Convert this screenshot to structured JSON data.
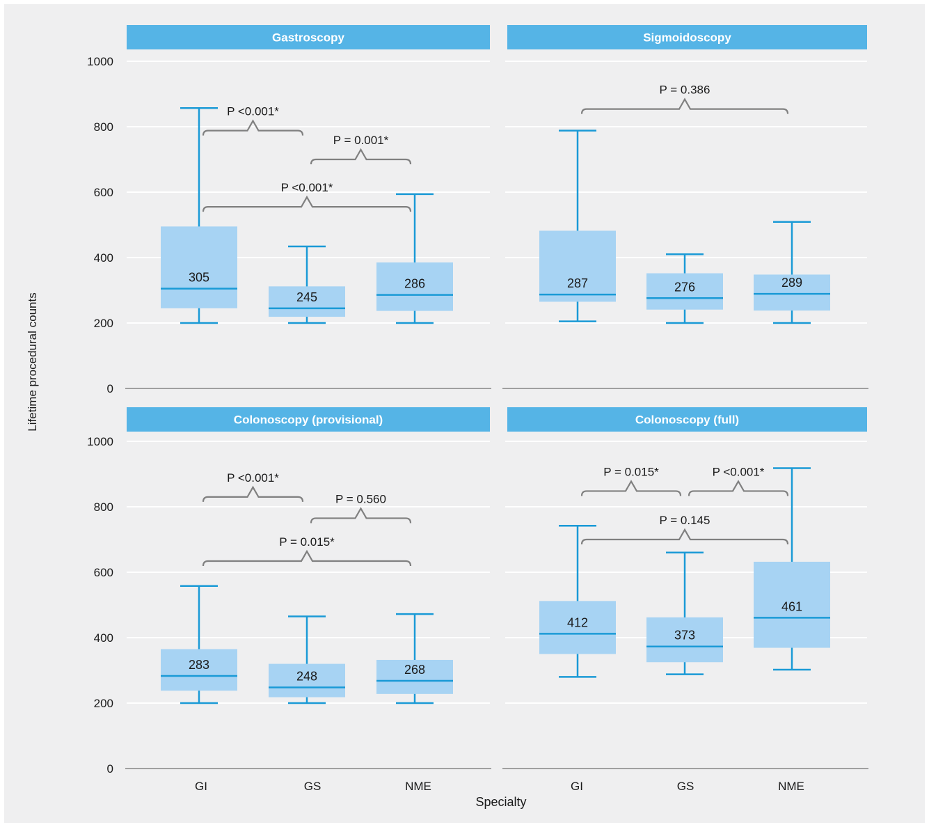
{
  "chart_data": {
    "type": "box",
    "x_axis_label": "Specialty",
    "y_axis_label": "Lifetime procedural counts",
    "y_ticks": [
      0,
      200,
      400,
      600,
      800,
      1000
    ],
    "ylim": [
      0,
      1000
    ],
    "categories": [
      "GI",
      "GS",
      "NME"
    ],
    "colors": {
      "strip": "#55b4e6",
      "box_fill": "#a7d3f3",
      "median": "#1a9ad6",
      "bracket": "#808080"
    },
    "panels": [
      {
        "title": "Gastroscopy",
        "boxes": [
          {
            "category": "GI",
            "whisker_low": 200,
            "q1": 245,
            "median": 305,
            "q3": 495,
            "whisker_high": 857,
            "label": "305"
          },
          {
            "category": "GS",
            "whisker_low": 200,
            "q1": 219,
            "median": 245,
            "q3": 312,
            "whisker_high": 434,
            "label": "245"
          },
          {
            "category": "NME",
            "whisker_low": 200,
            "q1": 237,
            "median": 286,
            "q3": 385,
            "whisker_high": 594,
            "label": "286"
          }
        ],
        "comparisons": [
          {
            "from": "GI",
            "to": "GS",
            "y": 788,
            "text": "P <0.001*"
          },
          {
            "from": "GS",
            "to": "NME",
            "y": 700,
            "text": "P = 0.001*"
          },
          {
            "from": "GI",
            "to": "NME",
            "y": 555,
            "text": "P <0.001*"
          }
        ]
      },
      {
        "title": "Sigmoidoscopy",
        "boxes": [
          {
            "category": "GI",
            "whisker_low": 205,
            "q1": 265,
            "median": 287,
            "q3": 482,
            "whisker_high": 788,
            "label": "287"
          },
          {
            "category": "GS",
            "whisker_low": 200,
            "q1": 241,
            "median": 276,
            "q3": 352,
            "whisker_high": 410,
            "label": "276"
          },
          {
            "category": "NME",
            "whisker_low": 200,
            "q1": 238,
            "median": 289,
            "q3": 348,
            "whisker_high": 509,
            "label": "289"
          }
        ],
        "comparisons": [
          {
            "from": "GI",
            "to": "NME",
            "y": 854,
            "text": "P = 0.386"
          }
        ]
      },
      {
        "title": "Colonoscopy (provisional)",
        "boxes": [
          {
            "category": "GI",
            "whisker_low": 200,
            "q1": 238,
            "median": 283,
            "q3": 365,
            "whisker_high": 558,
            "label": "283"
          },
          {
            "category": "GS",
            "whisker_low": 200,
            "q1": 218,
            "median": 248,
            "q3": 320,
            "whisker_high": 465,
            "label": "248"
          },
          {
            "category": "NME",
            "whisker_low": 200,
            "q1": 228,
            "median": 268,
            "q3": 332,
            "whisker_high": 472,
            "label": "268"
          }
        ],
        "comparisons": [
          {
            "from": "GI",
            "to": "GS",
            "y": 830,
            "text": "P <0.001*"
          },
          {
            "from": "GS",
            "to": "NME",
            "y": 765,
            "text": "P = 0.560"
          },
          {
            "from": "GI",
            "to": "NME",
            "y": 634,
            "text": "P = 0.015*"
          }
        ]
      },
      {
        "title": "Colonoscopy (full)",
        "boxes": [
          {
            "category": "GI",
            "whisker_low": 280,
            "q1": 350,
            "median": 412,
            "q3": 512,
            "whisker_high": 742,
            "label": "412"
          },
          {
            "category": "GS",
            "whisker_low": 288,
            "q1": 325,
            "median": 373,
            "q3": 462,
            "whisker_high": 660,
            "label": "373"
          },
          {
            "category": "NME",
            "whisker_low": 302,
            "q1": 369,
            "median": 461,
            "q3": 632,
            "whisker_high": 918,
            "label": "461"
          }
        ],
        "comparisons": [
          {
            "from": "GI",
            "to": "GS",
            "y": 848,
            "text": "P = 0.015*"
          },
          {
            "from": "GS",
            "to": "NME",
            "y": 848,
            "text": "P <0.001*"
          },
          {
            "from": "GI",
            "to": "NME",
            "y": 700,
            "text": "P = 0.145"
          }
        ]
      }
    ]
  }
}
